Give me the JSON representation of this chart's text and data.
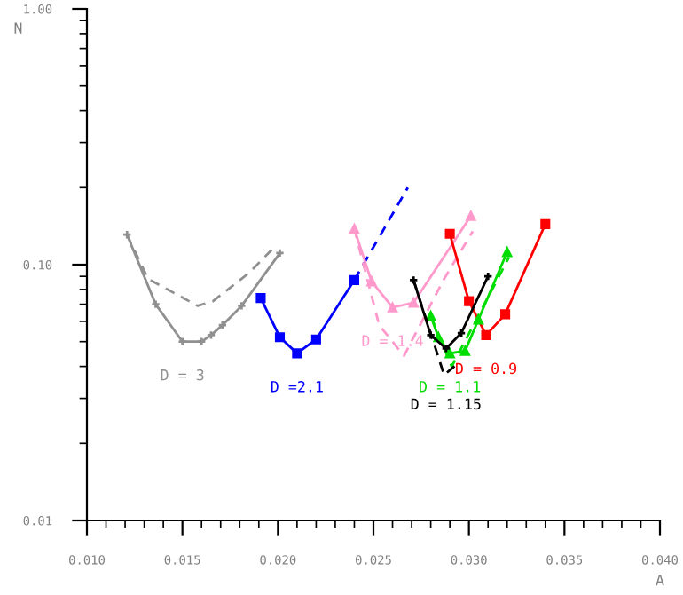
{
  "chart_data": {
    "type": "line",
    "xlabel": "A",
    "ylabel": "N",
    "log": "y",
    "xlim": [
      0.01,
      0.04
    ],
    "xticks": [
      {
        "value": 0.01,
        "label": "0.010"
      },
      {
        "value": 0.015,
        "label": "0.015"
      },
      {
        "value": 0.02,
        "label": "0.020"
      },
      {
        "value": 0.025,
        "label": "0.025"
      },
      {
        "value": 0.03,
        "label": "0.030"
      },
      {
        "value": 0.035,
        "label": "0.035"
      },
      {
        "value": 0.04,
        "label": "0.040"
      }
    ],
    "ylim": [
      0.01,
      1.0
    ],
    "yticks": [
      {
        "value": 0.01,
        "label": "0.01"
      },
      {
        "value": 0.1,
        "label": "0.10"
      },
      {
        "value": 1.0,
        "label": "1.00"
      }
    ],
    "grid": false,
    "legend": false,
    "series": [
      {
        "name": "D = 3",
        "color": "#909090",
        "marker": "cross",
        "line_style": "solid",
        "x": [
          0.0121,
          0.0136,
          0.015,
          0.016,
          0.0165,
          0.0171,
          0.0181,
          0.0201
        ],
        "values": [
          0.131,
          0.07,
          0.05,
          0.05,
          0.053,
          0.058,
          0.069,
          0.111
        ]
      },
      {
        "color": "#909090",
        "marker": "none",
        "line_style": "dashed",
        "x": [
          0.0121,
          0.0132,
          0.0158,
          0.0166,
          0.0185,
          0.0199
        ],
        "values": [
          0.131,
          0.088,
          0.069,
          0.072,
          0.093,
          0.119
        ]
      },
      {
        "name": "D =2.1",
        "color": "#0000ff",
        "marker": "square",
        "line_style": "solid",
        "x": [
          0.0191,
          0.0201,
          0.021,
          0.022,
          0.024
        ],
        "values": [
          0.074,
          0.052,
          0.045,
          0.051,
          0.087
        ]
      },
      {
        "color": "#0000ff",
        "marker": "none",
        "line_style": "dashed",
        "x": [
          0.024,
          0.0268
        ],
        "values": [
          0.087,
          0.2
        ]
      },
      {
        "name": "D = 1.4",
        "color": "#ff99cc",
        "marker": "triangle",
        "line_style": "solid",
        "x": [
          0.024,
          0.0249,
          0.026,
          0.0271,
          0.0301
        ],
        "values": [
          0.138,
          0.086,
          0.068,
          0.071,
          0.155
        ]
      },
      {
        "color": "#ff99cc",
        "marker": "none",
        "line_style": "dashed",
        "x": [
          0.024,
          0.0253,
          0.0266,
          0.0287,
          0.0302
        ],
        "values": [
          0.138,
          0.058,
          0.044,
          0.088,
          0.135
        ]
      },
      {
        "name": "D = 0.9",
        "color": "#ff0000",
        "marker": "square",
        "line_style": "solid",
        "x": [
          0.029,
          0.03,
          0.0309,
          0.0319,
          0.034
        ],
        "values": [
          0.132,
          0.072,
          0.053,
          0.064,
          0.144
        ]
      },
      {
        "name": "D = 1.1",
        "color": "#00dd00",
        "marker": "triangle",
        "line_style": "solid",
        "x": [
          0.028,
          0.0284,
          0.029,
          0.0298,
          0.0305,
          0.032
        ],
        "values": [
          0.063,
          0.052,
          0.045,
          0.046,
          0.061,
          0.112
        ]
      },
      {
        "color": "#00dd00",
        "marker": "none",
        "line_style": "dashed",
        "x": [
          0.028,
          0.0291,
          0.0321
        ],
        "values": [
          0.063,
          0.04,
          0.107
        ]
      },
      {
        "name": "D = 1.15",
        "color": "#000000",
        "marker": "cross",
        "line_style": "solid",
        "x": [
          0.0271,
          0.028,
          0.0288,
          0.0296,
          0.031
        ],
        "values": [
          0.087,
          0.053,
          0.047,
          0.054,
          0.09
        ]
      },
      {
        "color": "#000000",
        "marker": "none",
        "line_style": "dashed",
        "x": [
          0.0271,
          0.0287,
          0.0294
        ],
        "values": [
          0.087,
          0.037,
          0.041
        ]
      }
    ]
  }
}
